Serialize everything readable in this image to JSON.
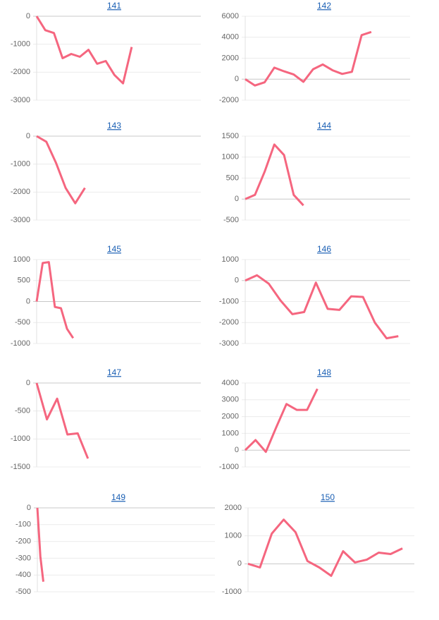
{
  "chart_data": [
    {
      "type": "line",
      "title": "141",
      "categories": [
        null,
        null,
        null,
        null,
        null,
        null,
        null,
        null,
        null,
        null,
        null,
        null,
        null,
        null,
        null,
        null,
        null,
        null,
        null,
        null
      ],
      "values": [
        0,
        -500,
        -600,
        -1500,
        -1350,
        -1450,
        -1200,
        -1700,
        -1600,
        -2100,
        -2400,
        -1100,
        null,
        null,
        null,
        null,
        null,
        null,
        null,
        null
      ],
      "color": "#f5667f",
      "ylim": [
        -3000,
        0
      ],
      "yticks": [
        0,
        -1000,
        -2000,
        -3000
      ],
      "grid": true
    },
    {
      "type": "line",
      "title": "142",
      "categories": [
        null,
        null,
        null,
        null,
        null,
        null,
        null,
        null,
        null,
        null,
        null,
        null,
        null,
        null,
        null,
        null,
        null,
        null
      ],
      "values": [
        0,
        -600,
        -300,
        1100,
        750,
        450,
        -250,
        950,
        1400,
        850,
        500,
        700,
        4200,
        4500,
        null,
        null,
        null,
        null
      ],
      "color": "#f5667f",
      "ylim": [
        -2000,
        6000
      ],
      "yticks": [
        6000,
        4000,
        2000,
        0,
        -2000
      ],
      "grid": true
    },
    {
      "type": "line",
      "title": "143",
      "categories": [
        null,
        null,
        null,
        null,
        null,
        null,
        null,
        null,
        null,
        null,
        null,
        null,
        null,
        null,
        null,
        null,
        null,
        null
      ],
      "values": [
        0,
        -200,
        -950,
        -1850,
        -2400,
        -1850,
        null,
        null,
        null,
        null,
        null,
        null,
        null,
        null,
        null,
        null,
        null,
        null
      ],
      "color": "#f5667f",
      "ylim": [
        -3000,
        0
      ],
      "yticks": [
        0,
        -1000,
        -2000,
        -3000
      ],
      "grid": true
    },
    {
      "type": "line",
      "title": "144",
      "categories": [
        null,
        null,
        null,
        null,
        null,
        null,
        null,
        null,
        null,
        null,
        null,
        null,
        null,
        null,
        null,
        null,
        null,
        null
      ],
      "values": [
        0,
        100,
        650,
        1300,
        1050,
        100,
        -150,
        null,
        null,
        null,
        null,
        null,
        null,
        null,
        null,
        null,
        null,
        null
      ],
      "color": "#f5667f",
      "ylim": [
        -500,
        1500
      ],
      "yticks": [
        1500,
        1000,
        500,
        0,
        -500
      ],
      "grid": true
    },
    {
      "type": "line",
      "title": "145",
      "categories": [
        null,
        null,
        null,
        null,
        null,
        null,
        null,
        null,
        null,
        null,
        null,
        null,
        null,
        null,
        null,
        null,
        null,
        null,
        null,
        null,
        null,
        null,
        null,
        null,
        null,
        null,
        null,
        null
      ],
      "values": [
        0,
        920,
        940,
        -130,
        -160,
        -650,
        -870,
        null,
        null,
        null,
        null,
        null,
        null,
        null,
        null,
        null,
        null,
        null,
        null,
        null,
        null,
        null,
        null,
        null,
        null,
        null,
        null,
        null
      ],
      "color": "#f5667f",
      "ylim": [
        -1000,
        1000
      ],
      "yticks": [
        1000,
        500,
        0,
        -500,
        -1000
      ],
      "grid": true
    },
    {
      "type": "line",
      "title": "146",
      "categories": [
        null,
        null,
        null,
        null,
        null,
        null,
        null,
        null,
        null,
        null,
        null,
        null,
        null,
        null,
        null
      ],
      "values": [
        0,
        250,
        -150,
        -950,
        -1600,
        -1500,
        -100,
        -1350,
        -1400,
        -750,
        -780,
        -2000,
        -2750,
        -2650,
        null
      ],
      "color": "#f5667f",
      "ylim": [
        -3000,
        1000
      ],
      "yticks": [
        1000,
        0,
        -1000,
        -2000,
        -3000
      ],
      "grid": true
    },
    {
      "type": "line",
      "title": "147",
      "categories": [
        null,
        null,
        null,
        null,
        null,
        null,
        null,
        null,
        null,
        null,
        null,
        null,
        null,
        null,
        null,
        null,
        null
      ],
      "values": [
        0,
        -650,
        -280,
        -920,
        -900,
        -1350,
        null,
        null,
        null,
        null,
        null,
        null,
        null,
        null,
        null,
        null,
        null
      ],
      "color": "#f5667f",
      "ylim": [
        -1500,
        0
      ],
      "yticks": [
        0,
        -500,
        -1000,
        -1500
      ],
      "grid": true
    },
    {
      "type": "line",
      "title": "148",
      "categories": [
        null,
        null,
        null,
        null,
        null,
        null,
        null,
        null,
        null,
        null,
        null,
        null,
        null,
        null,
        null,
        null,
        null
      ],
      "values": [
        0,
        600,
        -100,
        1350,
        2750,
        2400,
        2400,
        3650,
        null,
        null,
        null,
        null,
        null,
        null,
        null,
        null,
        null
      ],
      "color": "#f5667f",
      "ylim": [
        -1000,
        4000
      ],
      "yticks": [
        4000,
        3000,
        2000,
        1000,
        0,
        -1000
      ],
      "grid": true
    },
    {
      "type": "line",
      "title": "149",
      "categories": [
        null,
        null,
        null,
        null,
        null,
        null,
        null,
        null,
        null,
        null,
        null,
        null,
        null,
        null,
        null,
        null,
        null,
        null,
        null,
        null,
        null,
        null,
        null,
        null,
        null,
        null,
        null,
        null,
        null,
        null,
        null,
        null,
        null,
        null,
        null,
        null,
        null,
        null,
        null,
        null,
        null,
        null,
        null,
        null,
        null,
        null,
        null,
        null,
        null,
        null,
        null,
        null,
        null,
        null,
        null,
        null,
        null,
        null,
        null,
        null
      ],
      "values": [
        0,
        -290,
        -440,
        null,
        null,
        null,
        null,
        null,
        null,
        null,
        null,
        null,
        null,
        null,
        null,
        null,
        null,
        null,
        null,
        null,
        null,
        null,
        null,
        null,
        null,
        null,
        null,
        null,
        null,
        null,
        null,
        null,
        null,
        null,
        null,
        null,
        null,
        null,
        null,
        null,
        null,
        null,
        null,
        null,
        null,
        null,
        null,
        null,
        null,
        null,
        null,
        null,
        null,
        null,
        null,
        null,
        null,
        null,
        null,
        null
      ],
      "color": "#f5667f",
      "ylim": [
        -500,
        0
      ],
      "yticks": [
        0,
        -100,
        -200,
        -300,
        -400,
        -500
      ],
      "grid": true
    },
    {
      "type": "line",
      "title": "150",
      "categories": [
        null,
        null,
        null,
        null,
        null,
        null,
        null,
        null,
        null,
        null,
        null,
        null,
        null,
        null,
        null
      ],
      "values": [
        0,
        -130,
        1080,
        1580,
        1130,
        100,
        -130,
        -430,
        450,
        50,
        150,
        400,
        350,
        550,
        null
      ],
      "color": "#f5667f",
      "ylim": [
        -1000,
        2000
      ],
      "yticks": [
        2000,
        1000,
        0,
        -1000
      ],
      "grid": true
    }
  ]
}
